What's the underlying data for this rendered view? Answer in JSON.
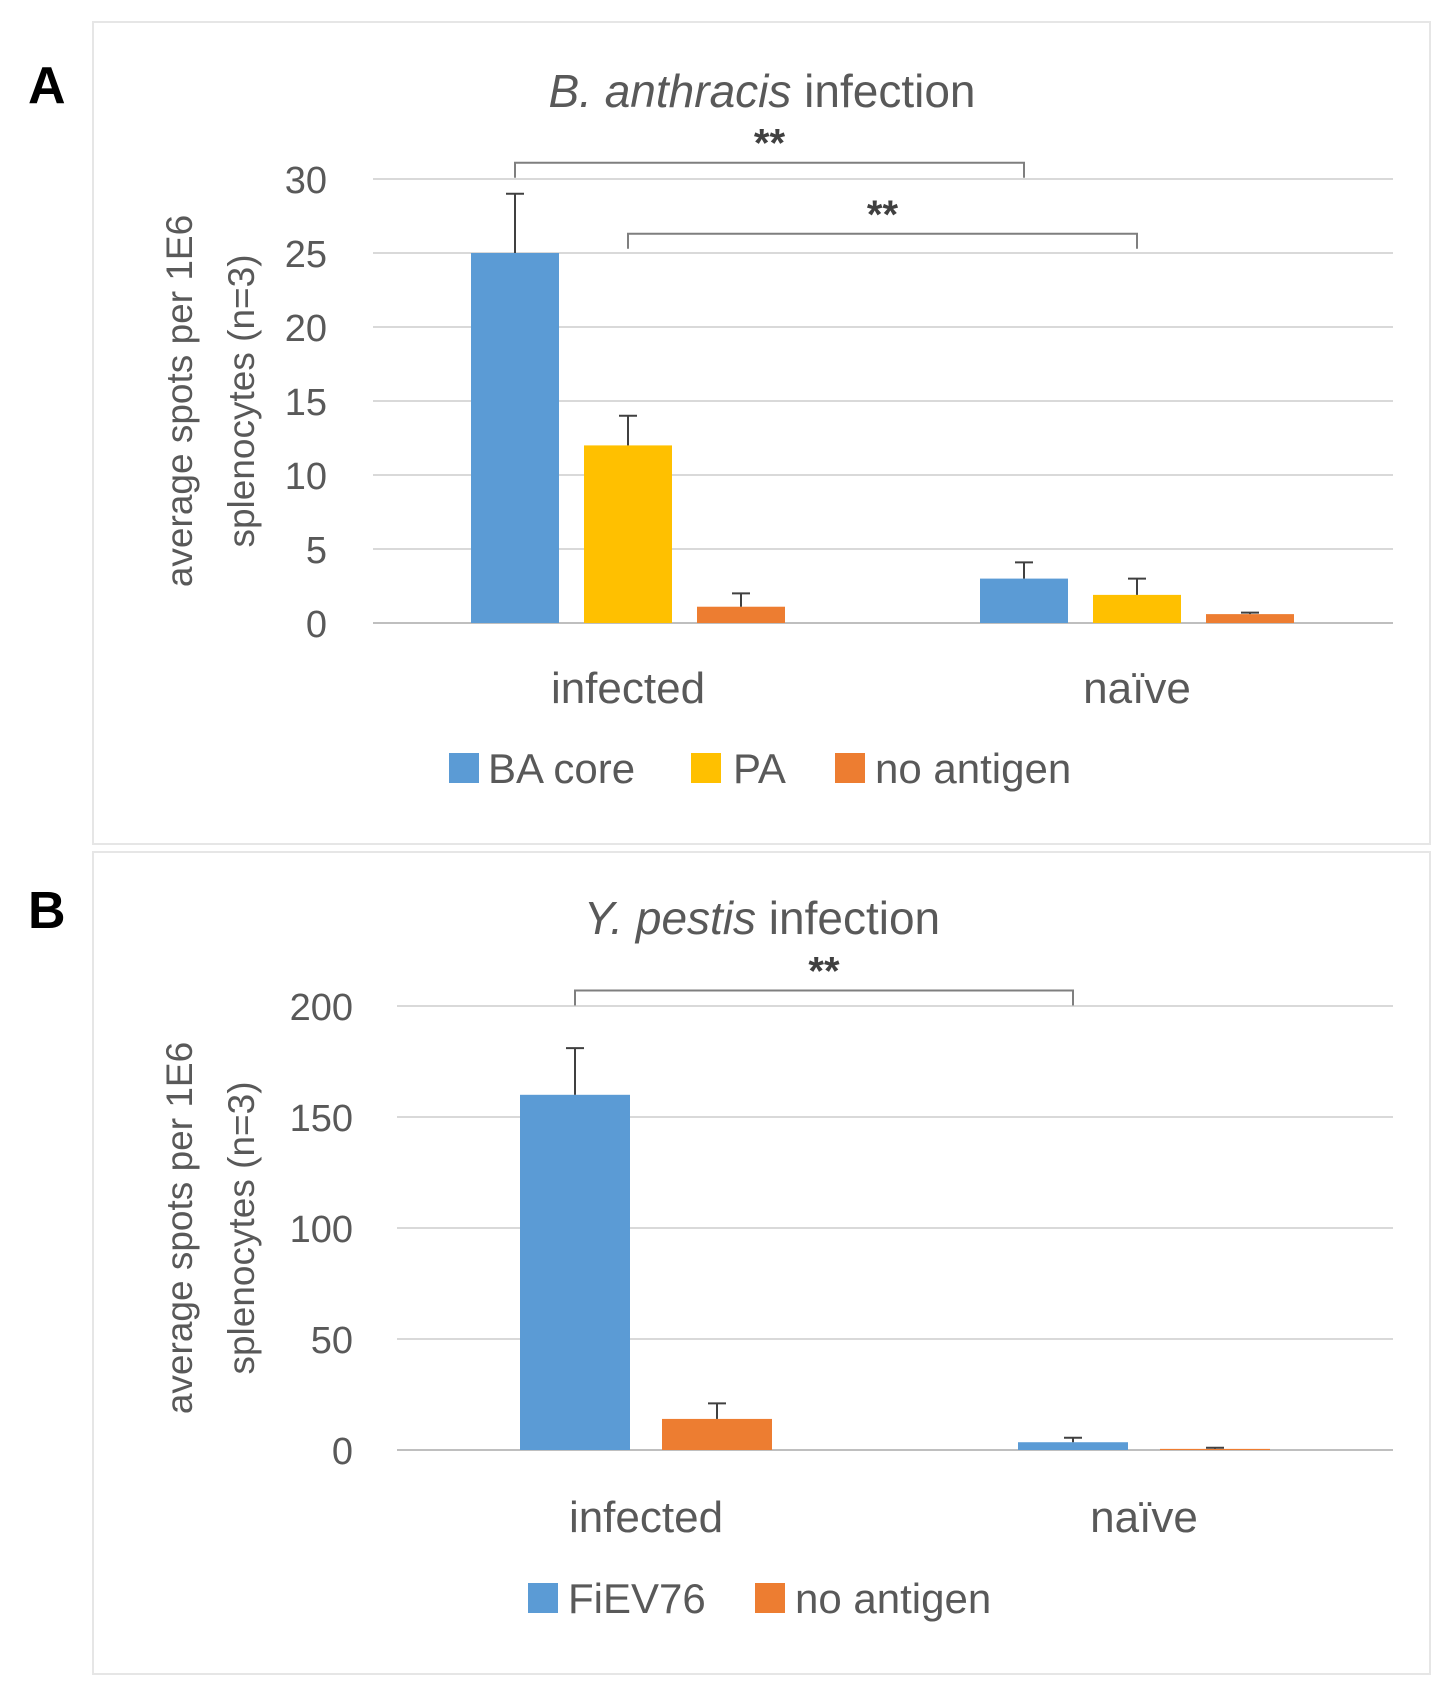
{
  "colors": {
    "blue": "#5B9BD5",
    "yellow": "#FFC000",
    "orange": "#ED7D31",
    "text": "#595959",
    "grid": "#D9D9D9",
    "bracket": "#7F7F7F"
  },
  "chart_data": [
    {
      "panel_label": "A",
      "type": "bar",
      "title_italic": "B. anthracis",
      "title_rest": " infection",
      "ylabel_line1": "average spots per 1E6",
      "ylabel_line2": "splenocytes (n=3)",
      "ylim": [
        0,
        30
      ],
      "yticks": [
        0,
        5,
        10,
        15,
        20,
        25,
        30
      ],
      "grid": true,
      "legend_position": "bottom",
      "categories": [
        "infected",
        "naïve"
      ],
      "series": [
        {
          "name": "BA core",
          "color": "blue",
          "values": [
            25,
            3
          ],
          "errors": [
            4,
            1.1
          ]
        },
        {
          "name": "PA",
          "color": "yellow",
          "values": [
            12,
            1.9
          ],
          "errors": [
            2,
            1.1
          ]
        },
        {
          "name": "no antigen",
          "color": "orange",
          "values": [
            1.1,
            0.6
          ],
          "errors": [
            0.9,
            0.1
          ]
        }
      ],
      "significance": [
        {
          "label": "**",
          "from": [
            0,
            0
          ],
          "to": [
            1,
            0
          ],
          "level": 31.1
        },
        {
          "label": "**",
          "from": [
            0,
            1
          ],
          "to": [
            1,
            1
          ],
          "level": 26.3
        }
      ]
    },
    {
      "panel_label": "B",
      "type": "bar",
      "title_italic": "Y. pestis",
      "title_rest": " infection",
      "ylabel_line1": "average spots per 1E6",
      "ylabel_line2": "splenocytes (n=3)",
      "ylim": [
        0,
        200
      ],
      "yticks": [
        0,
        50,
        100,
        150,
        200
      ],
      "grid": true,
      "legend_position": "bottom",
      "categories": [
        "infected",
        "naïve"
      ],
      "series": [
        {
          "name": "FiEV76",
          "color": "blue",
          "values": [
            160,
            3.5
          ],
          "errors": [
            21,
            2
          ]
        },
        {
          "name": "no antigen",
          "color": "orange",
          "values": [
            14,
            0.5
          ],
          "errors": [
            7,
            0.5
          ]
        }
      ],
      "significance": [
        {
          "label": "**",
          "from": [
            0,
            0
          ],
          "to": [
            1,
            0
          ],
          "level": 207
        }
      ]
    }
  ]
}
